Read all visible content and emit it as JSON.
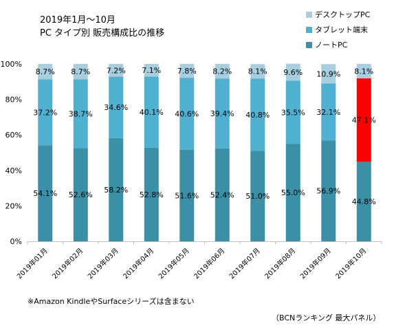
{
  "title": {
    "line1": "2019年1月〜10月",
    "line2": "PC タイプ別 販売構成比の推移"
  },
  "chart_data": {
    "type": "bar",
    "stacked": true,
    "categories": [
      "2019年01月",
      "2019年02月",
      "2019年03月",
      "2019年04月",
      "2019年05月",
      "2019年06月",
      "2019年07月",
      "2019年08月",
      "2019年09月",
      "2019年10月"
    ],
    "series": [
      {
        "name": "ノートPC",
        "color": "#3b8fa6",
        "values": [
          54.1,
          52.6,
          58.2,
          52.8,
          51.6,
          52.4,
          51.0,
          55.0,
          56.9,
          44.8
        ]
      },
      {
        "name": "タブレット端末",
        "color": "#4fb0cf",
        "values": [
          37.2,
          38.7,
          34.6,
          40.1,
          40.6,
          39.4,
          40.8,
          35.5,
          32.1,
          47.1
        ]
      },
      {
        "name": "デスクトップPC",
        "color": "#a7cfdf",
        "values": [
          8.7,
          8.7,
          7.2,
          7.1,
          7.8,
          8.2,
          8.1,
          9.6,
          10.9,
          8.1
        ]
      }
    ],
    "highlight": {
      "category_index": 9,
      "series_index": 1,
      "color": "#ff0000"
    },
    "ylim": [
      0,
      100
    ],
    "yticks": [
      "0%",
      "20%",
      "40%",
      "60%",
      "80%",
      "100%"
    ],
    "value_format": "percent_1dp",
    "legend_position": "top-right",
    "grid": false
  },
  "note": "※Amazon KindleやSurfaceシリーズは含まない",
  "source": "（BCNランキング 最大パネル）"
}
